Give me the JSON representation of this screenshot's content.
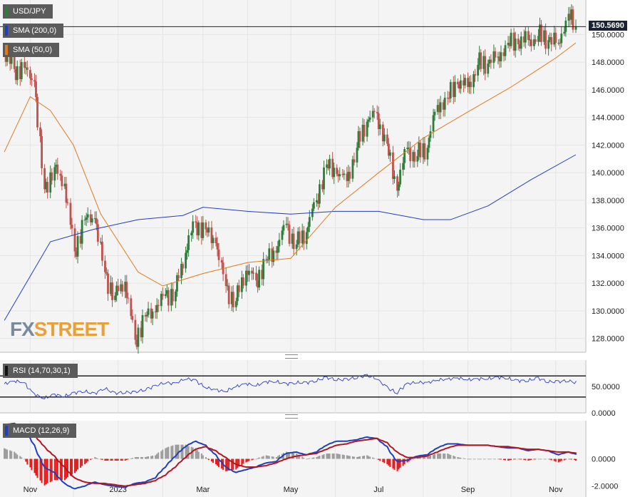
{
  "symbol": "USD/JPY",
  "indicators": {
    "sma200": {
      "label": "SMA (200,0)",
      "color": "#1f3fbf"
    },
    "sma50": {
      "label": "SMA (50,0)",
      "color": "#e07a1a"
    },
    "rsi": {
      "label": "RSI (14,70,30,1)",
      "color": "#2a3fbf"
    },
    "macd": {
      "label": "MACD (12,26,9)",
      "line_color": "#1f3fbf",
      "signal_color": "#b5151c"
    }
  },
  "last_price_label": "150.5690",
  "brand": {
    "fx": "FX",
    "street": "STREET"
  },
  "colors": {
    "up": "#2e7d3a",
    "down": "#c0514d",
    "grid": "#e4e4e4",
    "bg": "#f4f4f4"
  },
  "chart_data": [
    {
      "type": "candlestick",
      "title": "USD/JPY",
      "x_ticks": [
        "Nov",
        "2023",
        "Mar",
        "May",
        "Jul",
        "Sep",
        "Nov"
      ],
      "y_ticks": [
        "128.0000",
        "130.0000",
        "132.0000",
        "134.0000",
        "136.0000",
        "138.0000",
        "140.0000",
        "142.0000",
        "144.0000",
        "146.0000",
        "148.0000",
        "150.0000"
      ],
      "ylim": [
        127.0,
        152.5
      ],
      "last_price": 150.569,
      "weekly_close": [
        [
          "2022-10-14",
          148.7
        ],
        [
          "2022-10-21",
          147.5
        ],
        [
          "2022-10-28",
          147.6
        ],
        [
          "2022-11-04",
          146.6
        ],
        [
          "2022-11-11",
          138.8
        ],
        [
          "2022-11-18",
          140.4
        ],
        [
          "2022-11-25",
          139.2
        ],
        [
          "2022-12-02",
          134.3
        ],
        [
          "2022-12-09",
          136.6
        ],
        [
          "2022-12-16",
          136.7
        ],
        [
          "2022-12-23",
          132.8
        ],
        [
          "2022-12-30",
          131.1
        ],
        [
          "2023-01-06",
          132.1
        ],
        [
          "2023-01-13",
          127.9
        ],
        [
          "2023-01-20",
          129.6
        ],
        [
          "2023-01-27",
          129.9
        ],
        [
          "2023-02-03",
          131.2
        ],
        [
          "2023-02-10",
          131.4
        ],
        [
          "2023-02-17",
          134.2
        ],
        [
          "2023-02-24",
          136.4
        ],
        [
          "2023-03-03",
          135.9
        ],
        [
          "2023-03-10",
          134.9
        ],
        [
          "2023-03-17",
          131.8
        ],
        [
          "2023-03-24",
          130.7
        ],
        [
          "2023-03-31",
          132.9
        ],
        [
          "2023-04-07",
          132.2
        ],
        [
          "2023-04-14",
          133.7
        ],
        [
          "2023-04-21",
          134.2
        ],
        [
          "2023-04-28",
          136.3
        ],
        [
          "2023-05-05",
          134.8
        ],
        [
          "2023-05-12",
          135.7
        ],
        [
          "2023-05-19",
          138.0
        ],
        [
          "2023-05-26",
          140.6
        ],
        [
          "2023-06-02",
          139.9
        ],
        [
          "2023-06-09",
          139.4
        ],
        [
          "2023-06-16",
          141.8
        ],
        [
          "2023-06-23",
          143.7
        ],
        [
          "2023-06-30",
          144.3
        ],
        [
          "2023-07-07",
          142.1
        ],
        [
          "2023-07-14",
          138.7
        ],
        [
          "2023-07-21",
          141.8
        ],
        [
          "2023-07-28",
          141.2
        ],
        [
          "2023-08-04",
          141.8
        ],
        [
          "2023-08-11",
          144.9
        ],
        [
          "2023-08-18",
          145.4
        ],
        [
          "2023-08-25",
          146.4
        ],
        [
          "2023-09-01",
          146.2
        ],
        [
          "2023-09-08",
          147.8
        ],
        [
          "2023-09-15",
          147.9
        ],
        [
          "2023-09-22",
          148.4
        ],
        [
          "2023-09-29",
          149.4
        ],
        [
          "2023-10-06",
          149.3
        ],
        [
          "2023-10-13",
          149.6
        ],
        [
          "2023-10-20",
          149.9
        ],
        [
          "2023-10-27",
          149.6
        ],
        [
          "2023-11-03",
          149.4
        ],
        [
          "2023-11-10",
          151.5
        ],
        [
          "2023-11-15",
          150.6
        ]
      ],
      "series": [
        {
          "name": "SMA (200,0)",
          "values": [
            [
              "2022-10-14",
              129.3
            ],
            [
              "2022-11-15",
              135.0
            ],
            [
              "2022-12-15",
              135.9
            ],
            [
              "2023-01-15",
              136.6
            ],
            [
              "2023-02-15",
              136.9
            ],
            [
              "2023-03-01",
              137.5
            ],
            [
              "2023-04-01",
              137.2
            ],
            [
              "2023-05-01",
              137.0
            ],
            [
              "2023-06-01",
              137.2
            ],
            [
              "2023-07-01",
              137.2
            ],
            [
              "2023-08-01",
              136.6
            ],
            [
              "2023-08-20",
              136.6
            ],
            [
              "2023-09-15",
              137.6
            ],
            [
              "2023-10-15",
              139.5
            ],
            [
              "2023-11-15",
              141.3
            ]
          ]
        },
        {
          "name": "SMA (50,0)",
          "values": [
            [
              "2022-10-14",
              141.5
            ],
            [
              "2022-11-01",
              145.5
            ],
            [
              "2022-11-15",
              144.5
            ],
            [
              "2022-12-01",
              142.0
            ],
            [
              "2022-12-20",
              137.0
            ],
            [
              "2023-01-15",
              132.8
            ],
            [
              "2023-02-01",
              131.8
            ],
            [
              "2023-03-01",
              132.7
            ],
            [
              "2023-04-01",
              133.5
            ],
            [
              "2023-05-01",
              133.8
            ],
            [
              "2023-06-01",
              137.5
            ],
            [
              "2023-07-01",
              140.0
            ],
            [
              "2023-08-01",
              142.5
            ],
            [
              "2023-09-01",
              144.4
            ],
            [
              "2023-10-01",
              146.2
            ],
            [
              "2023-11-01",
              148.3
            ],
            [
              "2023-11-15",
              149.4
            ]
          ]
        }
      ]
    },
    {
      "type": "line",
      "title": "RSI (14,70,30,1)",
      "y_ticks": [
        "0.0000",
        "50.0000"
      ],
      "ylim": [
        0,
        100
      ],
      "levels": [
        70,
        30
      ],
      "values": [
        55,
        60,
        58,
        35,
        28,
        34,
        32,
        37,
        42,
        35,
        48,
        36,
        40,
        38,
        45,
        50,
        58,
        55,
        65,
        62,
        48,
        44,
        40,
        50,
        55,
        52,
        58,
        60,
        54,
        58,
        56,
        62,
        66,
        64,
        62,
        68,
        70,
        66,
        48,
        38,
        55,
        58,
        57,
        62,
        64,
        66,
        63,
        64,
        65,
        67,
        66,
        60,
        62,
        65,
        60,
        58,
        62,
        55
      ]
    },
    {
      "type": "line",
      "title": "MACD (12,26,9)",
      "y_ticks": [
        "-2.0000",
        "0.0000"
      ],
      "ylim": [
        -2.8,
        2.8
      ],
      "macd": [
        2.5,
        2.6,
        2.3,
        1.0,
        -0.6,
        -1.0,
        -1.8,
        -2.2,
        -2.0,
        -1.7,
        -1.9,
        -2.0,
        -2.1,
        -1.8,
        -1.7,
        -1.4,
        -0.6,
        0.2,
        0.9,
        1.3,
        1.0,
        0.3,
        -0.6,
        -1.0,
        -0.8,
        -0.6,
        -0.3,
        -0.2,
        0.4,
        0.5,
        0.3,
        0.5,
        1.0,
        1.3,
        1.3,
        1.4,
        1.6,
        1.5,
        0.9,
        -0.2,
        -0.1,
        0.2,
        0.3,
        0.8,
        1.1,
        1.1,
        1.0,
        1.0,
        1.0,
        0.9,
        0.8,
        0.8,
        0.6,
        0.7,
        0.6,
        0.3,
        0.5,
        0.3
      ],
      "signal": [
        1.9,
        2.2,
        2.3,
        1.8,
        0.9,
        0.2,
        -0.6,
        -1.4,
        -1.7,
        -1.8,
        -1.8,
        -1.9,
        -2.0,
        -1.9,
        -1.8,
        -1.6,
        -1.2,
        -0.6,
        0.1,
        0.7,
        0.9,
        0.6,
        0.1,
        -0.4,
        -0.6,
        -0.6,
        -0.5,
        -0.3,
        0.0,
        0.2,
        0.3,
        0.4,
        0.7,
        1.0,
        1.1,
        1.3,
        1.4,
        1.5,
        1.2,
        0.5,
        0.1,
        0.1,
        0.2,
        0.5,
        0.8,
        1.0,
        1.0,
        1.0,
        1.0,
        0.9,
        0.9,
        0.8,
        0.7,
        0.7,
        0.6,
        0.5,
        0.5,
        0.4
      ]
    }
  ]
}
